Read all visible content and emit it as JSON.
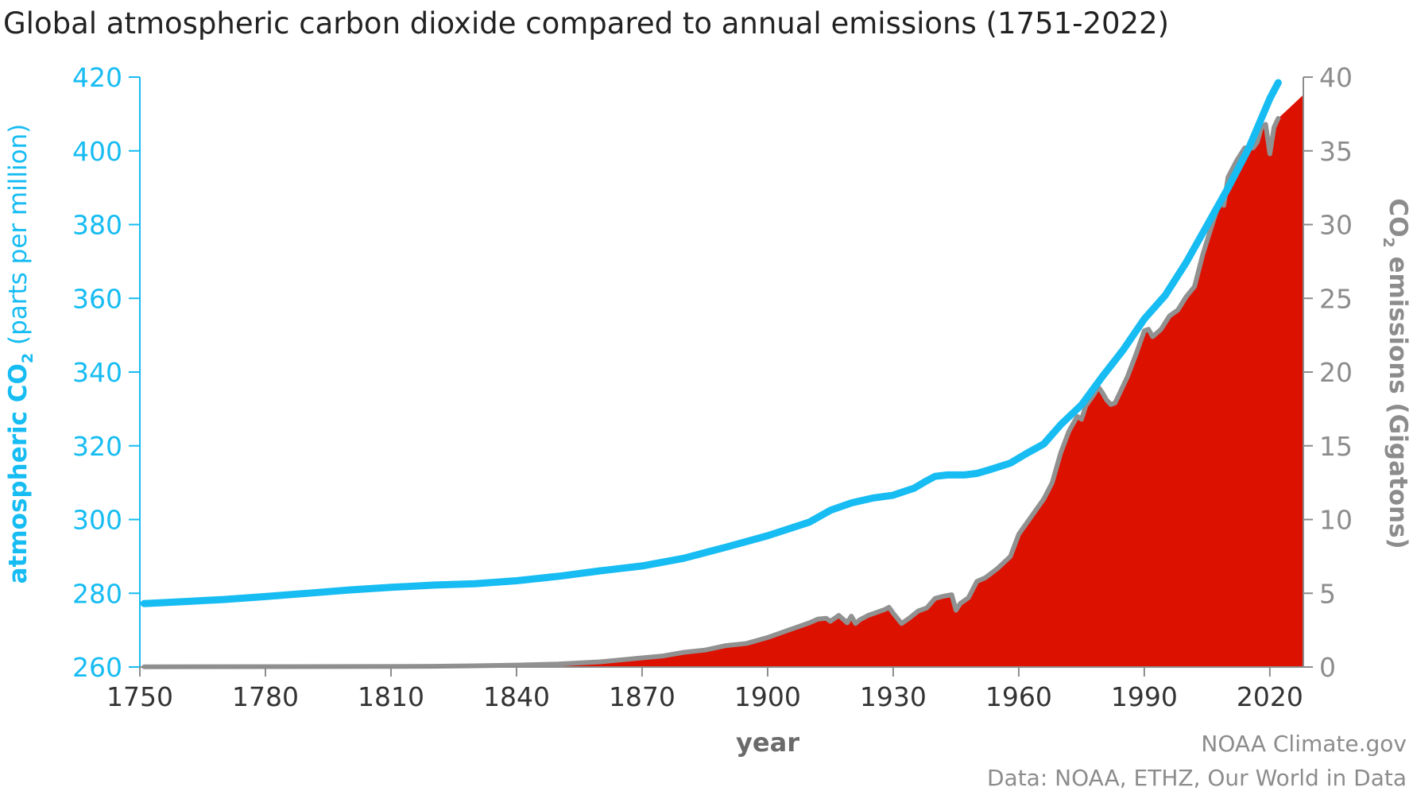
{
  "chart_data": {
    "type": "area",
    "title": "Global atmospheric carbon dioxide compared to annual emissions (1751-2022)",
    "xlabel": "year",
    "x_ticks": [
      1750,
      1780,
      1810,
      1840,
      1870,
      1900,
      1930,
      1960,
      1990,
      2020
    ],
    "xlim": [
      1750,
      2028
    ],
    "left_axis": {
      "label_pre": "atmospheric CO",
      "label_sub": "2",
      "label_post": " (parts per million)",
      "ylim": [
        260,
        420
      ],
      "ticks": [
        260,
        280,
        300,
        320,
        340,
        360,
        380,
        400,
        420
      ]
    },
    "right_axis": {
      "label_pre": "CO",
      "label_sub": "2",
      "label_post": " emissions (Gigatons)",
      "ylim": [
        0,
        40
      ],
      "ticks": [
        0,
        5,
        10,
        15,
        20,
        25,
        30,
        35,
        40
      ]
    },
    "colors": {
      "co2_line": "#16BCF2",
      "emissions_fill": "#DD1100",
      "emissions_line": "#919191",
      "axis_gray": "#8C8C8C",
      "title_text": "#222222"
    },
    "series": [
      {
        "axis": "left",
        "points": [
          [
            1751,
            277.2
          ],
          [
            1760,
            277.7
          ],
          [
            1770,
            278.3
          ],
          [
            1780,
            279.1
          ],
          [
            1790,
            280.0
          ],
          [
            1800,
            280.9
          ],
          [
            1810,
            281.6
          ],
          [
            1820,
            282.2
          ],
          [
            1830,
            282.6
          ],
          [
            1840,
            283.4
          ],
          [
            1850,
            284.6
          ],
          [
            1860,
            286.1
          ],
          [
            1870,
            287.4
          ],
          [
            1880,
            289.5
          ],
          [
            1890,
            292.5
          ],
          [
            1900,
            295.6
          ],
          [
            1910,
            299.3
          ],
          [
            1915,
            302.5
          ],
          [
            1920,
            304.5
          ],
          [
            1925,
            305.8
          ],
          [
            1930,
            306.6
          ],
          [
            1935,
            308.5
          ],
          [
            1938,
            310.5
          ],
          [
            1940,
            311.7
          ],
          [
            1943,
            312.1
          ],
          [
            1947,
            312.1
          ],
          [
            1950,
            312.5
          ],
          [
            1953,
            313.5
          ],
          [
            1958,
            315.3
          ],
          [
            1962,
            318.0
          ],
          [
            1966,
            320.5
          ],
          [
            1970,
            325.7
          ],
          [
            1975,
            331.1
          ],
          [
            1980,
            338.8
          ],
          [
            1985,
            346.1
          ],
          [
            1990,
            354.4
          ],
          [
            1995,
            360.8
          ],
          [
            2000,
            369.7
          ],
          [
            2005,
            379.8
          ],
          [
            2010,
            389.9
          ],
          [
            2015,
            400.8
          ],
          [
            2020,
            414.2
          ],
          [
            2022,
            418.5
          ]
        ]
      },
      {
        "axis": "right",
        "points": [
          [
            1751,
            0.01
          ],
          [
            1800,
            0.03
          ],
          [
            1820,
            0.05
          ],
          [
            1830,
            0.08
          ],
          [
            1840,
            0.13
          ],
          [
            1850,
            0.2
          ],
          [
            1860,
            0.35
          ],
          [
            1870,
            0.62
          ],
          [
            1875,
            0.75
          ],
          [
            1880,
            1.0
          ],
          [
            1885,
            1.15
          ],
          [
            1890,
            1.45
          ],
          [
            1895,
            1.6
          ],
          [
            1900,
            2.0
          ],
          [
            1905,
            2.5
          ],
          [
            1910,
            3.0
          ],
          [
            1912,
            3.25
          ],
          [
            1914,
            3.3
          ],
          [
            1915,
            3.1
          ],
          [
            1917,
            3.5
          ],
          [
            1919,
            3.0
          ],
          [
            1920,
            3.45
          ],
          [
            1921,
            2.95
          ],
          [
            1922,
            3.2
          ],
          [
            1924,
            3.5
          ],
          [
            1926,
            3.7
          ],
          [
            1928,
            3.9
          ],
          [
            1929,
            4.05
          ],
          [
            1930,
            3.65
          ],
          [
            1932,
            2.95
          ],
          [
            1934,
            3.35
          ],
          [
            1936,
            3.8
          ],
          [
            1938,
            4.0
          ],
          [
            1940,
            4.65
          ],
          [
            1942,
            4.8
          ],
          [
            1944,
            4.9
          ],
          [
            1945,
            3.85
          ],
          [
            1946,
            4.3
          ],
          [
            1948,
            4.7
          ],
          [
            1950,
            5.8
          ],
          [
            1952,
            6.05
          ],
          [
            1955,
            6.7
          ],
          [
            1958,
            7.5
          ],
          [
            1960,
            9.0
          ],
          [
            1963,
            10.2
          ],
          [
            1966,
            11.4
          ],
          [
            1968,
            12.5
          ],
          [
            1970,
            14.5
          ],
          [
            1972,
            16.0
          ],
          [
            1974,
            17.0
          ],
          [
            1975,
            16.8
          ],
          [
            1976,
            17.7
          ],
          [
            1978,
            18.5
          ],
          [
            1979,
            19.0
          ],
          [
            1980,
            18.6
          ],
          [
            1981,
            18.1
          ],
          [
            1982,
            17.8
          ],
          [
            1983,
            17.9
          ],
          [
            1984,
            18.5
          ],
          [
            1986,
            19.7
          ],
          [
            1988,
            21.2
          ],
          [
            1990,
            22.8
          ],
          [
            1991,
            22.9
          ],
          [
            1992,
            22.4
          ],
          [
            1994,
            22.9
          ],
          [
            1996,
            23.8
          ],
          [
            1998,
            24.2
          ],
          [
            2000,
            25.1
          ],
          [
            2002,
            25.8
          ],
          [
            2004,
            28.0
          ],
          [
            2006,
            29.8
          ],
          [
            2008,
            31.6
          ],
          [
            2009,
            31.3
          ],
          [
            2010,
            33.2
          ],
          [
            2012,
            34.3
          ],
          [
            2014,
            35.2
          ],
          [
            2016,
            35.2
          ],
          [
            2017,
            35.6
          ],
          [
            2018,
            36.6
          ],
          [
            2019,
            36.8
          ],
          [
            2020,
            34.8
          ],
          [
            2021,
            36.6
          ],
          [
            2022,
            37.2
          ],
          [
            2025,
            38.0
          ],
          [
            2028,
            38.8
          ]
        ]
      }
    ]
  },
  "footer": {
    "credit": "NOAA Climate.gov",
    "source": "Data: NOAA, ETHZ, Our World in Data"
  }
}
